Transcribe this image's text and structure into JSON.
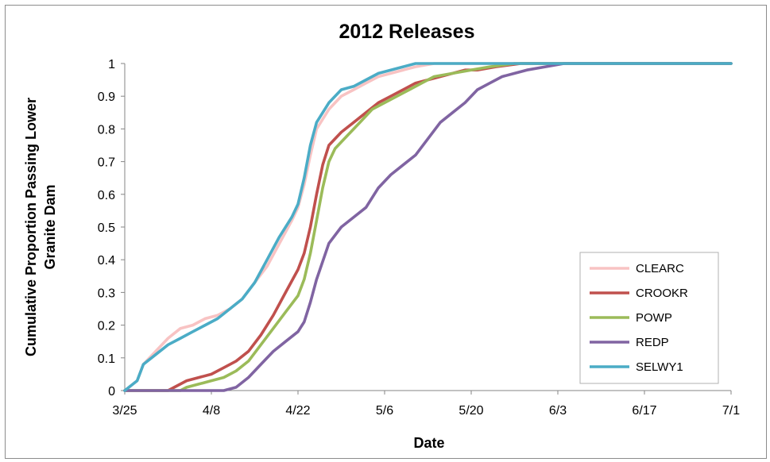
{
  "chart_data": {
    "type": "line",
    "title": "2012 Releases",
    "xlabel": "Date",
    "ylabel": [
      "Cumulative Proportion Passing Lower",
      "Granite Dam"
    ],
    "x_ticks": [
      "3/25",
      "4/8",
      "4/22",
      "5/6",
      "5/20",
      "6/3",
      "6/17",
      "7/1"
    ],
    "y_ticks": [
      "0",
      "0.1",
      "0.2",
      "0.3",
      "0.4",
      "0.5",
      "0.6",
      "0.7",
      "0.8",
      "0.9",
      "1"
    ],
    "xlim": [
      "3/25",
      "7/1"
    ],
    "ylim": [
      0,
      1
    ],
    "grid": false,
    "legend_position": "bottom-right",
    "series": [
      {
        "name": "CLEARC",
        "color": "#f8c3c3",
        "points": [
          [
            "3/25",
            0
          ],
          [
            "3/27",
            0.03
          ],
          [
            "3/28",
            0.08
          ],
          [
            "3/30",
            0.12
          ],
          [
            "4/1",
            0.16
          ],
          [
            "4/3",
            0.19
          ],
          [
            "4/5",
            0.2
          ],
          [
            "4/7",
            0.22
          ],
          [
            "4/9",
            0.23
          ],
          [
            "4/11",
            0.25
          ],
          [
            "4/13",
            0.28
          ],
          [
            "4/15",
            0.33
          ],
          [
            "4/17",
            0.38
          ],
          [
            "4/19",
            0.45
          ],
          [
            "4/21",
            0.52
          ],
          [
            "4/22",
            0.56
          ],
          [
            "4/23",
            0.63
          ],
          [
            "4/24",
            0.72
          ],
          [
            "4/25",
            0.8
          ],
          [
            "4/27",
            0.86
          ],
          [
            "4/29",
            0.9
          ],
          [
            "5/1",
            0.92
          ],
          [
            "5/3",
            0.94
          ],
          [
            "5/5",
            0.96
          ],
          [
            "5/7",
            0.97
          ],
          [
            "5/9",
            0.98
          ],
          [
            "5/11",
            0.99
          ],
          [
            "5/14",
            1.0
          ],
          [
            "7/1",
            1.0
          ]
        ]
      },
      {
        "name": "CROOKR",
        "color": "#c0504d",
        "points": [
          [
            "3/25",
            0
          ],
          [
            "4/1",
            0
          ],
          [
            "4/2",
            0.01
          ],
          [
            "4/4",
            0.03
          ],
          [
            "4/6",
            0.04
          ],
          [
            "4/8",
            0.05
          ],
          [
            "4/10",
            0.07
          ],
          [
            "4/12",
            0.09
          ],
          [
            "4/14",
            0.12
          ],
          [
            "4/16",
            0.17
          ],
          [
            "4/18",
            0.23
          ],
          [
            "4/20",
            0.3
          ],
          [
            "4/22",
            0.37
          ],
          [
            "4/23",
            0.42
          ],
          [
            "4/24",
            0.5
          ],
          [
            "4/25",
            0.6
          ],
          [
            "4/26",
            0.69
          ],
          [
            "4/27",
            0.75
          ],
          [
            "4/29",
            0.79
          ],
          [
            "5/1",
            0.82
          ],
          [
            "5/3",
            0.85
          ],
          [
            "5/5",
            0.88
          ],
          [
            "5/7",
            0.9
          ],
          [
            "5/9",
            0.92
          ],
          [
            "5/11",
            0.94
          ],
          [
            "5/13",
            0.95
          ],
          [
            "5/15",
            0.96
          ],
          [
            "5/17",
            0.97
          ],
          [
            "5/19",
            0.98
          ],
          [
            "5/21",
            0.98
          ],
          [
            "5/24",
            0.99
          ],
          [
            "5/28",
            1.0
          ],
          [
            "7/1",
            1.0
          ]
        ]
      },
      {
        "name": "POWP",
        "color": "#9bbb59",
        "points": [
          [
            "3/25",
            0
          ],
          [
            "4/3",
            0
          ],
          [
            "4/4",
            0.01
          ],
          [
            "4/6",
            0.02
          ],
          [
            "4/8",
            0.03
          ],
          [
            "4/10",
            0.04
          ],
          [
            "4/12",
            0.06
          ],
          [
            "4/14",
            0.09
          ],
          [
            "4/16",
            0.14
          ],
          [
            "4/18",
            0.19
          ],
          [
            "4/20",
            0.24
          ],
          [
            "4/22",
            0.29
          ],
          [
            "4/23",
            0.34
          ],
          [
            "4/24",
            0.42
          ],
          [
            "4/25",
            0.52
          ],
          [
            "4/26",
            0.62
          ],
          [
            "4/27",
            0.7
          ],
          [
            "4/28",
            0.74
          ],
          [
            "4/30",
            0.78
          ],
          [
            "5/2",
            0.82
          ],
          [
            "5/4",
            0.86
          ],
          [
            "5/6",
            0.88
          ],
          [
            "5/8",
            0.9
          ],
          [
            "5/10",
            0.92
          ],
          [
            "5/12",
            0.94
          ],
          [
            "5/14",
            0.96
          ],
          [
            "5/17",
            0.97
          ],
          [
            "5/20",
            0.98
          ],
          [
            "5/23",
            0.99
          ],
          [
            "5/27",
            1.0
          ],
          [
            "7/1",
            1.0
          ]
        ]
      },
      {
        "name": "REDP",
        "color": "#8064a2",
        "points": [
          [
            "3/25",
            0
          ],
          [
            "4/10",
            0
          ],
          [
            "4/12",
            0.01
          ],
          [
            "4/14",
            0.04
          ],
          [
            "4/16",
            0.08
          ],
          [
            "4/18",
            0.12
          ],
          [
            "4/20",
            0.15
          ],
          [
            "4/22",
            0.18
          ],
          [
            "4/23",
            0.21
          ],
          [
            "4/24",
            0.27
          ],
          [
            "4/25",
            0.34
          ],
          [
            "4/27",
            0.45
          ],
          [
            "4/29",
            0.5
          ],
          [
            "5/1",
            0.53
          ],
          [
            "5/3",
            0.56
          ],
          [
            "5/5",
            0.62
          ],
          [
            "5/7",
            0.66
          ],
          [
            "5/9",
            0.69
          ],
          [
            "5/11",
            0.72
          ],
          [
            "5/13",
            0.77
          ],
          [
            "5/15",
            0.82
          ],
          [
            "5/17",
            0.85
          ],
          [
            "5/19",
            0.88
          ],
          [
            "5/21",
            0.92
          ],
          [
            "5/23",
            0.94
          ],
          [
            "5/25",
            0.96
          ],
          [
            "5/27",
            0.97
          ],
          [
            "5/29",
            0.98
          ],
          [
            "6/1",
            0.99
          ],
          [
            "6/4",
            1.0
          ],
          [
            "7/1",
            1.0
          ]
        ]
      },
      {
        "name": "SELWY1",
        "color": "#4bacc6",
        "points": [
          [
            "3/25",
            0
          ],
          [
            "3/27",
            0.03
          ],
          [
            "3/28",
            0.08
          ],
          [
            "3/30",
            0.11
          ],
          [
            "4/1",
            0.14
          ],
          [
            "4/3",
            0.16
          ],
          [
            "4/5",
            0.18
          ],
          [
            "4/7",
            0.2
          ],
          [
            "4/9",
            0.22
          ],
          [
            "4/11",
            0.25
          ],
          [
            "4/13",
            0.28
          ],
          [
            "4/15",
            0.33
          ],
          [
            "4/17",
            0.4
          ],
          [
            "4/19",
            0.47
          ],
          [
            "4/21",
            0.53
          ],
          [
            "4/22",
            0.57
          ],
          [
            "4/23",
            0.65
          ],
          [
            "4/24",
            0.75
          ],
          [
            "4/25",
            0.82
          ],
          [
            "4/27",
            0.88
          ],
          [
            "4/29",
            0.92
          ],
          [
            "5/1",
            0.93
          ],
          [
            "5/3",
            0.95
          ],
          [
            "5/5",
            0.97
          ],
          [
            "5/7",
            0.98
          ],
          [
            "5/9",
            0.99
          ],
          [
            "5/11",
            1.0
          ],
          [
            "7/1",
            1.0
          ]
        ]
      }
    ]
  }
}
